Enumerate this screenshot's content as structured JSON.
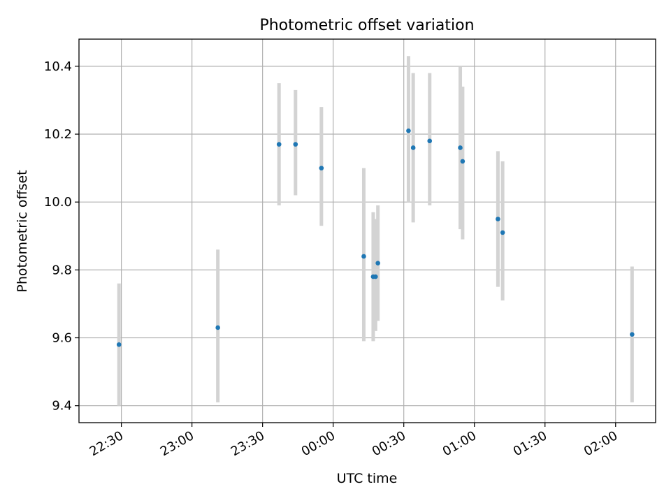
{
  "chart_data": {
    "type": "scatter",
    "title": "Photometric offset variation",
    "xlabel": "UTC time",
    "ylabel": "Photometric offset",
    "x_axis": "time",
    "xlim": [
      "22:12",
      "02:17"
    ],
    "ylim": [
      9.35,
      10.48
    ],
    "x_ticks": [
      "22:30",
      "23:00",
      "23:30",
      "00:00",
      "00:30",
      "01:00",
      "01:30",
      "02:00"
    ],
    "y_ticks": [
      "9.4",
      "9.6",
      "9.8",
      "10.0",
      "10.2",
      "10.4"
    ],
    "y_tick_values": [
      9.4,
      9.6,
      9.8,
      10.0,
      10.2,
      10.4
    ],
    "grid": true,
    "legend": false,
    "colors": {
      "point": "#1f77b4",
      "errorbar": "#d3d3d3",
      "grid": "#b0b0b0"
    },
    "points": [
      {
        "x": "22:29",
        "y": 9.58,
        "err_low": 9.4,
        "err_high": 9.76
      },
      {
        "x": "23:11",
        "y": 9.63,
        "err_low": 9.41,
        "err_high": 9.86
      },
      {
        "x": "23:37",
        "y": 10.17,
        "err_low": 9.99,
        "err_high": 10.35
      },
      {
        "x": "23:44",
        "y": 10.17,
        "err_low": 10.02,
        "err_high": 10.33
      },
      {
        "x": "23:55",
        "y": 10.1,
        "err_low": 9.93,
        "err_high": 10.28
      },
      {
        "x": "00:13",
        "y": 9.84,
        "err_low": 9.59,
        "err_high": 10.1
      },
      {
        "x": "00:17",
        "y": 9.78,
        "err_low": 9.59,
        "err_high": 9.97
      },
      {
        "x": "00:18",
        "y": 9.78,
        "err_low": 9.62,
        "err_high": 9.95
      },
      {
        "x": "00:19",
        "y": 9.82,
        "err_low": 9.65,
        "err_high": 9.99
      },
      {
        "x": "00:32",
        "y": 10.21,
        "err_low": 10.0,
        "err_high": 10.43
      },
      {
        "x": "00:34",
        "y": 10.16,
        "err_low": 9.94,
        "err_high": 10.38
      },
      {
        "x": "00:41",
        "y": 10.18,
        "err_low": 9.99,
        "err_high": 10.38
      },
      {
        "x": "00:54",
        "y": 10.16,
        "err_low": 9.92,
        "err_high": 10.4
      },
      {
        "x": "00:55",
        "y": 10.12,
        "err_low": 9.89,
        "err_high": 10.34
      },
      {
        "x": "01:10",
        "y": 9.95,
        "err_low": 9.75,
        "err_high": 10.15
      },
      {
        "x": "01:12",
        "y": 9.91,
        "err_low": 9.71,
        "err_high": 10.12
      },
      {
        "x": "02:07",
        "y": 9.61,
        "err_low": 9.41,
        "err_high": 9.81
      }
    ]
  }
}
